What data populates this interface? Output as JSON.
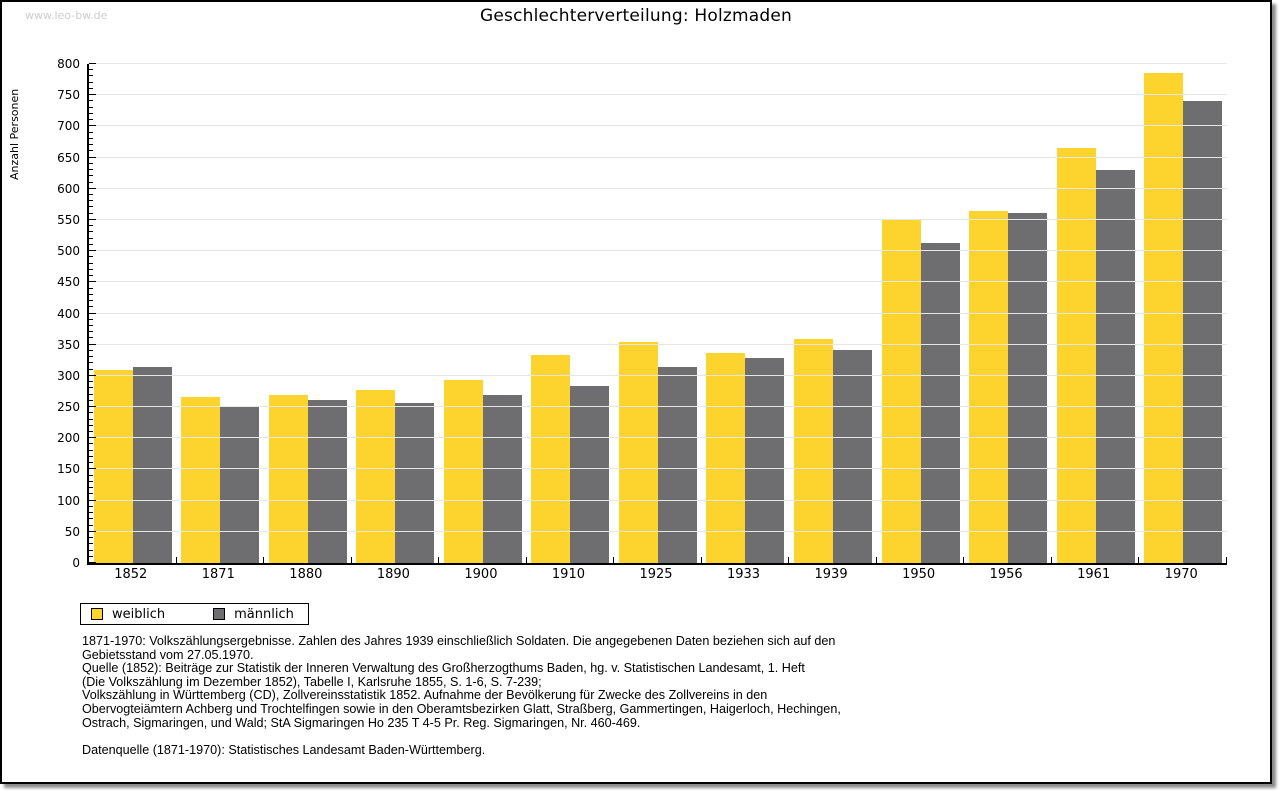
{
  "watermark": "www.leo-bw.de",
  "chart_data": {
    "type": "bar",
    "title": "Geschlechterverteilung: Holzmaden",
    "xlabel": "",
    "ylabel": "Anzahl Personen",
    "ylim": [
      0,
      800
    ],
    "ytick_step": 50,
    "yminor_step": 10,
    "grid": true,
    "legend_position": "bottom-left",
    "categories": [
      "1852",
      "1871",
      "1880",
      "1890",
      "1900",
      "1910",
      "1925",
      "1933",
      "1939",
      "1950",
      "1956",
      "1961",
      "1970"
    ],
    "series": [
      {
        "name": "weiblich",
        "color": "#fdd32e",
        "values": [
          310,
          266,
          269,
          278,
          294,
          334,
          354,
          337,
          359,
          551,
          565,
          665,
          785
        ]
      },
      {
        "name": "männlich",
        "color": "#6e6e70",
        "values": [
          315,
          250,
          262,
          257,
          270,
          283,
          314,
          328,
          341,
          513,
          561,
          630,
          740
        ]
      }
    ]
  },
  "footnotes": {
    "lines": [
      "1871-1970: Volkszählungsergebnisse. Zahlen des Jahres 1939 einschließlich Soldaten. Die angegebenen Daten beziehen sich auf den",
      "Gebietsstand vom 27.05.1970.",
      "Quelle (1852): Beiträge zur Statistik der Inneren Verwaltung des Großherzogthums Baden, hg. v. Statistischen Landesamt, 1. Heft",
      "(Die Volkszählung im Dezember 1852), Tabelle I, Karlsruhe 1855, S. 1-6, S. 7-239;",
      "Volkszählung in Württemberg (CD), Zollvereinsstatistik 1852. Aufnahme der Bevölkerung für Zwecke des Zollvereins in den",
      "Obervogteiämtern Achberg und Trochtelfingen sowie in den Oberamtsbezirken Glatt, Straßberg, Gammertingen, Haigerloch, Hechingen,",
      "Ostrach, Sigmaringen, und Wald; StA Sigmaringen Ho 235 T 4-5 Pr. Reg. Sigmaringen, Nr. 460-469."
    ],
    "datasource": "Datenquelle (1871-1970): Statistisches Landesamt Baden-Württemberg."
  }
}
